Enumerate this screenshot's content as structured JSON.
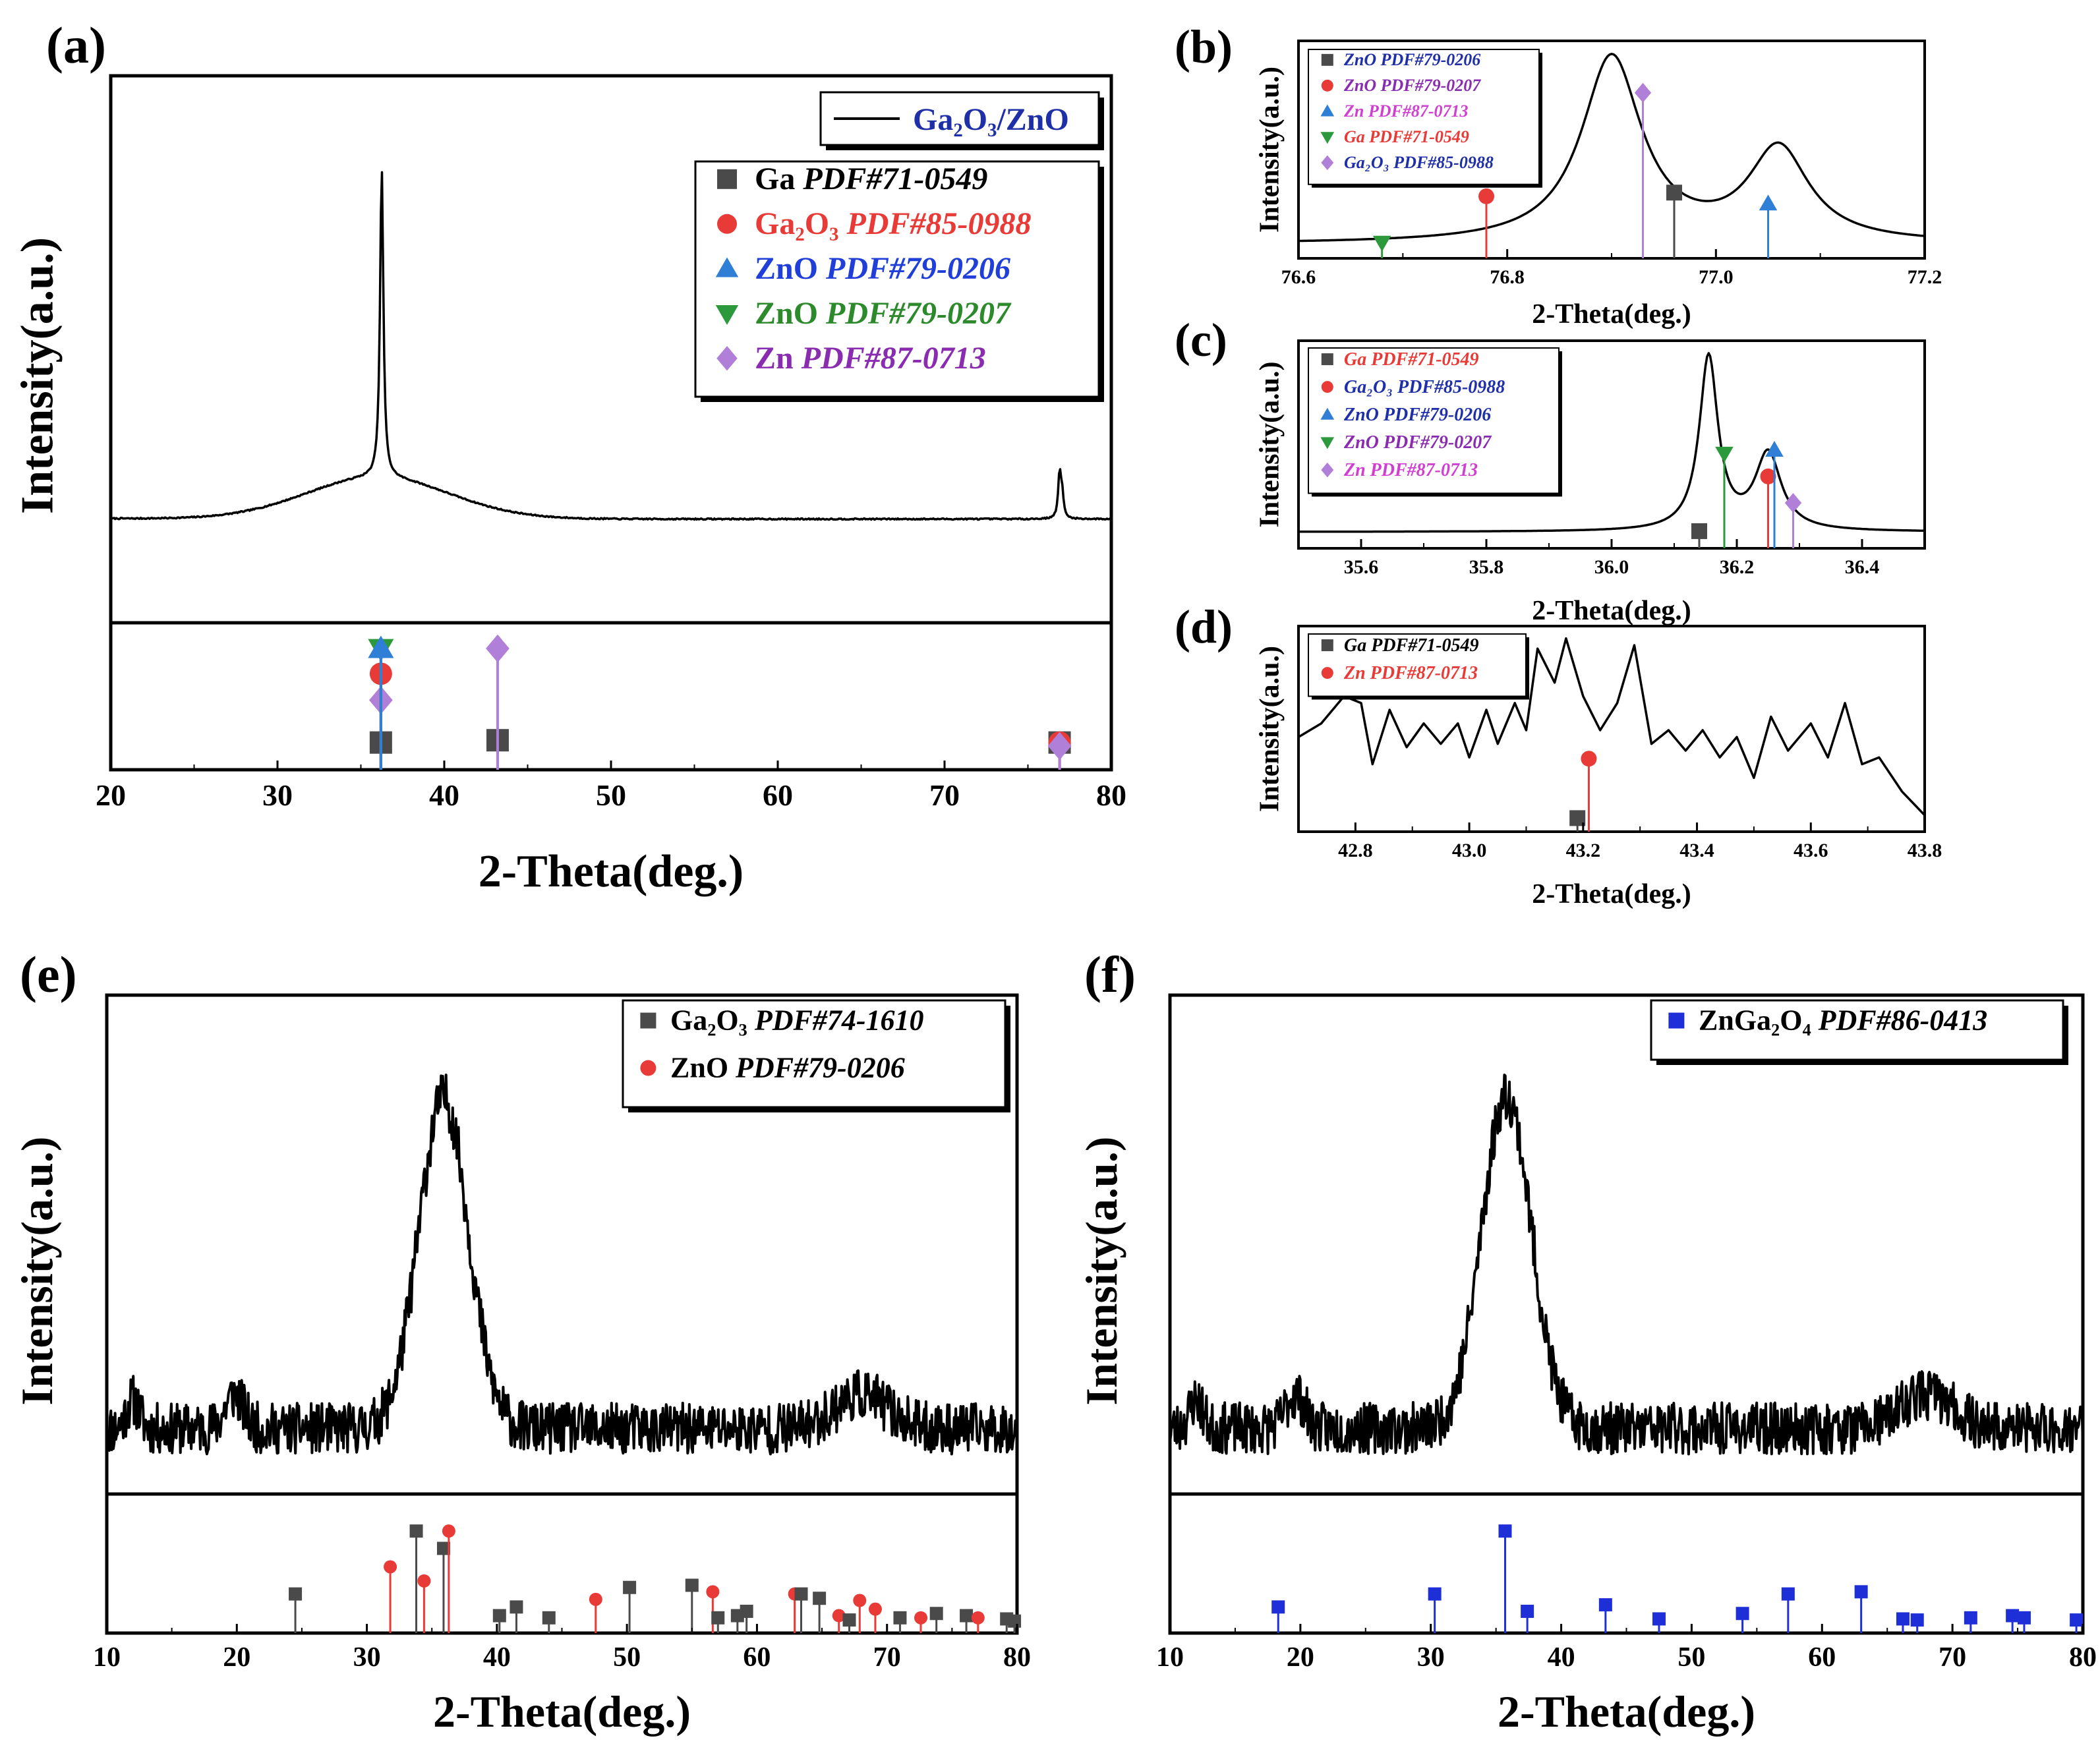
{
  "figure": {
    "panel_labels": [
      "(a)",
      "(b)",
      "(c)",
      "(d)",
      "(e)",
      "(f)"
    ],
    "colors": {
      "Ga": "#4a4a4a",
      "Ga2O3": "#e83a36",
      "ZnO_0206": "#2f7fd6",
      "ZnO_0207": "#2c9a3c",
      "Zn": "#b07fd8",
      "ZnGa2O4": "#1f2fd8",
      "curve": "#000000"
    }
  },
  "chart_data": [
    {
      "id": "a",
      "type": "line",
      "xlabel": "2-Theta(deg.)",
      "ylabel": "Intensity(a.u.)",
      "xlim": [
        20,
        80
      ],
      "xticks": [
        "20",
        "30",
        "40",
        "50",
        "60",
        "70",
        "80"
      ],
      "legend_curve": "Ga₂O₃/ZnO",
      "legend": [
        {
          "symbol": "square",
          "color": "#4a4a4a",
          "prefix": "Ga ",
          "pdf": "PDF#71-0549",
          "pdf_color": "#000000"
        },
        {
          "symbol": "circle",
          "color": "#e83a36",
          "prefix": "Ga₂O₃ ",
          "pdf": "PDF#85-0988",
          "prefix_color": "#e83a36",
          "pdf_color": "#e83a36"
        },
        {
          "symbol": "triangle-up",
          "color": "#2f7fd6",
          "prefix": "ZnO ",
          "pdf": "PDF#79-0206",
          "prefix_color": "#1f3fd8",
          "pdf_color": "#1f3fd8"
        },
        {
          "symbol": "triangle-down",
          "color": "#2c9a3c",
          "prefix": "ZnO ",
          "pdf": "PDF#79-0207",
          "prefix_color": "#2c8a2c",
          "pdf_color": "#2c8a2c"
        },
        {
          "symbol": "diamond",
          "color": "#b07fd8",
          "prefix": "Zn ",
          "pdf": "PDF#87-0713",
          "prefix_color": "#8a2cb0",
          "pdf_color": "#8a2cb0"
        }
      ],
      "peaks": [
        {
          "x": 36.2,
          "y": 0.18,
          "symbol": "square",
          "color": "#4a4a4a"
        },
        {
          "x": 36.2,
          "y": 0.55,
          "symbol": "diamond",
          "color": "#b07fd8"
        },
        {
          "x": 36.2,
          "y": 0.78,
          "symbol": "circle",
          "color": "#e83a36"
        },
        {
          "x": 36.2,
          "y": 1.0,
          "symbol": "triangle-down",
          "color": "#2c9a3c"
        },
        {
          "x": 36.2,
          "y": 1.0,
          "symbol": "triangle-up",
          "color": "#2f7fd6"
        },
        {
          "x": 43.2,
          "y": 0.2,
          "symbol": "square",
          "color": "#4a4a4a"
        },
        {
          "x": 43.2,
          "y": 1.0,
          "symbol": "diamond",
          "color": "#b07fd8"
        },
        {
          "x": 76.9,
          "y": 0.18,
          "symbol": "square",
          "color": "#4a4a4a"
        },
        {
          "x": 76.9,
          "y": 0.18,
          "symbol": "circle",
          "color": "#e83a36"
        },
        {
          "x": 76.9,
          "y": 0.15,
          "symbol": "diamond",
          "color": "#b07fd8"
        }
      ]
    },
    {
      "id": "b",
      "type": "line",
      "xlabel": "2-Theta(deg.)",
      "ylabel": "Intensity(a.u.)",
      "xlim": [
        76.6,
        77.2
      ],
      "xticks": [
        "76.6",
        "76.8",
        "77.0",
        "77.2"
      ],
      "legend": [
        {
          "symbol": "square",
          "color": "#4a4a4a",
          "text": "ZnO PDF#79-0206",
          "text_color": "#1f2fa8"
        },
        {
          "symbol": "circle",
          "color": "#e83a36",
          "text": "ZnO PDF#79-0207",
          "text_color": "#8a2cb0"
        },
        {
          "symbol": "triangle-up",
          "color": "#2f7fd6",
          "text": "Zn PDF#87-0713",
          "text_color": "#d040d0"
        },
        {
          "symbol": "triangle-down",
          "color": "#2c9a3c",
          "text": "Ga PDF#71-0549",
          "text_color": "#e83a36"
        },
        {
          "symbol": "diamond",
          "color": "#b07fd8",
          "text": "Ga₂O₃ PDF#85-0988",
          "text_color": "#1f2fa8"
        }
      ],
      "peaks": [
        {
          "x": 76.68,
          "y": 0.05,
          "symbol": "triangle-down",
          "color": "#2c9a3c"
        },
        {
          "x": 76.78,
          "y": 0.3,
          "symbol": "circle",
          "color": "#e83a36"
        },
        {
          "x": 76.93,
          "y": 0.86,
          "symbol": "diamond",
          "color": "#b07fd8"
        },
        {
          "x": 76.96,
          "y": 0.32,
          "symbol": "square",
          "color": "#4a4a4a"
        },
        {
          "x": 77.05,
          "y": 0.26,
          "symbol": "triangle-up",
          "color": "#2f7fd6"
        }
      ]
    },
    {
      "id": "c",
      "type": "line",
      "xlabel": "2-Theta(deg.)",
      "ylabel": "Intensity(a.u.)",
      "xlim": [
        35.5,
        36.5
      ],
      "xticks": [
        "35.6",
        "35.8",
        "36.0",
        "36.2",
        "36.4"
      ],
      "legend": [
        {
          "symbol": "square",
          "color": "#4a4a4a",
          "text": "Ga PDF#71-0549",
          "text_color": "#e83a36"
        },
        {
          "symbol": "circle",
          "color": "#e83a36",
          "text": "Ga₂O₃ PDF#85-0988",
          "text_color": "#1f2fa8"
        },
        {
          "symbol": "triangle-up",
          "color": "#2f7fd6",
          "text": "ZnO PDF#79-0206",
          "text_color": "#1f2fa8"
        },
        {
          "symbol": "triangle-down",
          "color": "#2c9a3c",
          "text": "ZnO PDF#79-0207",
          "text_color": "#8a2cb0"
        },
        {
          "symbol": "diamond",
          "color": "#b07fd8",
          "text": "Zn PDF#87-0713",
          "text_color": "#d040d0"
        }
      ],
      "peaks": [
        {
          "x": 36.14,
          "y": 0.06,
          "symbol": "square",
          "color": "#4a4a4a"
        },
        {
          "x": 36.18,
          "y": 0.5,
          "symbol": "triangle-down",
          "color": "#2c9a3c"
        },
        {
          "x": 36.25,
          "y": 0.37,
          "symbol": "circle",
          "color": "#e83a36"
        },
        {
          "x": 36.26,
          "y": 0.52,
          "symbol": "triangle-up",
          "color": "#2f7fd6"
        },
        {
          "x": 36.29,
          "y": 0.22,
          "symbol": "diamond",
          "color": "#b07fd8"
        }
      ]
    },
    {
      "id": "d",
      "type": "line",
      "xlabel": "2-Theta(deg.)",
      "ylabel": "Intensity(a.u.)",
      "xlim": [
        42.7,
        43.8
      ],
      "xticks": [
        "42.8",
        "43.0",
        "43.2",
        "43.4",
        "43.6",
        "43.8"
      ],
      "legend": [
        {
          "symbol": "square",
          "color": "#4a4a4a",
          "text": "Ga PDF#71-0549",
          "text_color": "#000000"
        },
        {
          "symbol": "circle",
          "color": "#e83a36",
          "text": "Zn PDF#87-0713",
          "text_color": "#e83a36"
        }
      ],
      "peaks": [
        {
          "x": 43.19,
          "y": 0.04,
          "symbol": "square",
          "color": "#4a4a4a"
        },
        {
          "x": 43.21,
          "y": 0.38,
          "symbol": "circle",
          "color": "#e83a36"
        }
      ]
    },
    {
      "id": "e",
      "type": "line",
      "xlabel": "2-Theta(deg.)",
      "ylabel": "Intensity(a.u.)",
      "xlim": [
        10,
        80
      ],
      "xticks": [
        "10",
        "20",
        "30",
        "40",
        "50",
        "60",
        "70",
        "80"
      ],
      "legend": [
        {
          "symbol": "square",
          "color": "#4a4a4a",
          "prefix": "Ga₂O₃ ",
          "pdf": "PDF#74-1610",
          "prefix_color": "#000000",
          "pdf_color": "#000000"
        },
        {
          "symbol": "circle",
          "color": "#e83a36",
          "prefix": "ZnO ",
          "pdf": "PDF#79-0206",
          "prefix_color": "#000000",
          "pdf_color": "#000000"
        }
      ],
      "peaks": [
        {
          "x": 24.5,
          "y": 0.3,
          "symbol": "square",
          "color": "#4a4a4a"
        },
        {
          "x": 31.8,
          "y": 0.55,
          "symbol": "circle",
          "color": "#e83a36"
        },
        {
          "x": 33.8,
          "y": 0.88,
          "symbol": "square",
          "color": "#4a4a4a"
        },
        {
          "x": 34.4,
          "y": 0.42,
          "symbol": "circle",
          "color": "#e83a36"
        },
        {
          "x": 35.9,
          "y": 0.72,
          "symbol": "square",
          "color": "#4a4a4a"
        },
        {
          "x": 36.3,
          "y": 0.88,
          "symbol": "circle",
          "color": "#e83a36"
        },
        {
          "x": 40.2,
          "y": 0.1,
          "symbol": "square",
          "color": "#4a4a4a"
        },
        {
          "x": 41.5,
          "y": 0.18,
          "symbol": "square",
          "color": "#4a4a4a"
        },
        {
          "x": 44.0,
          "y": 0.08,
          "symbol": "square",
          "color": "#4a4a4a"
        },
        {
          "x": 47.6,
          "y": 0.25,
          "symbol": "circle",
          "color": "#e83a36"
        },
        {
          "x": 50.2,
          "y": 0.36,
          "symbol": "square",
          "color": "#4a4a4a"
        },
        {
          "x": 55.0,
          "y": 0.38,
          "symbol": "square",
          "color": "#4a4a4a"
        },
        {
          "x": 56.6,
          "y": 0.32,
          "symbol": "circle",
          "color": "#e83a36"
        },
        {
          "x": 57.0,
          "y": 0.08,
          "symbol": "square",
          "color": "#4a4a4a"
        },
        {
          "x": 58.5,
          "y": 0.1,
          "symbol": "square",
          "color": "#4a4a4a"
        },
        {
          "x": 59.2,
          "y": 0.14,
          "symbol": "square",
          "color": "#4a4a4a"
        },
        {
          "x": 62.9,
          "y": 0.3,
          "symbol": "circle",
          "color": "#e83a36"
        },
        {
          "x": 63.4,
          "y": 0.3,
          "symbol": "square",
          "color": "#4a4a4a"
        },
        {
          "x": 64.8,
          "y": 0.26,
          "symbol": "square",
          "color": "#4a4a4a"
        },
        {
          "x": 66.3,
          "y": 0.1,
          "symbol": "circle",
          "color": "#e83a36"
        },
        {
          "x": 67.1,
          "y": 0.06,
          "symbol": "square",
          "color": "#4a4a4a"
        },
        {
          "x": 67.9,
          "y": 0.24,
          "symbol": "circle",
          "color": "#e83a36"
        },
        {
          "x": 69.1,
          "y": 0.16,
          "symbol": "circle",
          "color": "#e83a36"
        },
        {
          "x": 71.0,
          "y": 0.08,
          "symbol": "square",
          "color": "#4a4a4a"
        },
        {
          "x": 72.6,
          "y": 0.08,
          "symbol": "circle",
          "color": "#e83a36"
        },
        {
          "x": 73.8,
          "y": 0.12,
          "symbol": "square",
          "color": "#4a4a4a"
        },
        {
          "x": 76.1,
          "y": 0.1,
          "symbol": "square",
          "color": "#4a4a4a"
        },
        {
          "x": 77.0,
          "y": 0.08,
          "symbol": "circle",
          "color": "#e83a36"
        },
        {
          "x": 79.2,
          "y": 0.07,
          "symbol": "square",
          "color": "#4a4a4a"
        },
        {
          "x": 79.8,
          "y": 0.05,
          "symbol": "square",
          "color": "#4a4a4a"
        }
      ]
    },
    {
      "id": "f",
      "type": "line",
      "xlabel": "2-Theta(deg.)",
      "ylabel": "Intensity(a.u.)",
      "xlim": [
        10,
        80
      ],
      "xticks": [
        "10",
        "20",
        "30",
        "40",
        "50",
        "60",
        "70",
        "80"
      ],
      "legend": [
        {
          "symbol": "square",
          "color": "#1f2fd8",
          "prefix": "ZnGa₂O₄ ",
          "pdf": "PDF#86-0413",
          "prefix_color": "#000000",
          "pdf_color": "#000000"
        }
      ],
      "peaks": [
        {
          "x": 18.3,
          "y": 0.18,
          "symbol": "square",
          "color": "#1f2fd8"
        },
        {
          "x": 30.3,
          "y": 0.3,
          "symbol": "square",
          "color": "#1f2fd8"
        },
        {
          "x": 35.7,
          "y": 0.88,
          "symbol": "square",
          "color": "#1f2fd8"
        },
        {
          "x": 37.4,
          "y": 0.14,
          "symbol": "square",
          "color": "#1f2fd8"
        },
        {
          "x": 43.4,
          "y": 0.2,
          "symbol": "square",
          "color": "#1f2fd8"
        },
        {
          "x": 47.5,
          "y": 0.07,
          "symbol": "square",
          "color": "#1f2fd8"
        },
        {
          "x": 53.9,
          "y": 0.12,
          "symbol": "square",
          "color": "#1f2fd8"
        },
        {
          "x": 57.4,
          "y": 0.3,
          "symbol": "square",
          "color": "#1f2fd8"
        },
        {
          "x": 63.0,
          "y": 0.32,
          "symbol": "square",
          "color": "#1f2fd8"
        },
        {
          "x": 66.2,
          "y": 0.07,
          "symbol": "square",
          "color": "#1f2fd8"
        },
        {
          "x": 67.3,
          "y": 0.06,
          "symbol": "square",
          "color": "#1f2fd8"
        },
        {
          "x": 71.4,
          "y": 0.08,
          "symbol": "square",
          "color": "#1f2fd8"
        },
        {
          "x": 74.6,
          "y": 0.1,
          "symbol": "square",
          "color": "#1f2fd8"
        },
        {
          "x": 75.5,
          "y": 0.08,
          "symbol": "square",
          "color": "#1f2fd8"
        },
        {
          "x": 79.5,
          "y": 0.06,
          "symbol": "square",
          "color": "#1f2fd8"
        }
      ]
    }
  ]
}
